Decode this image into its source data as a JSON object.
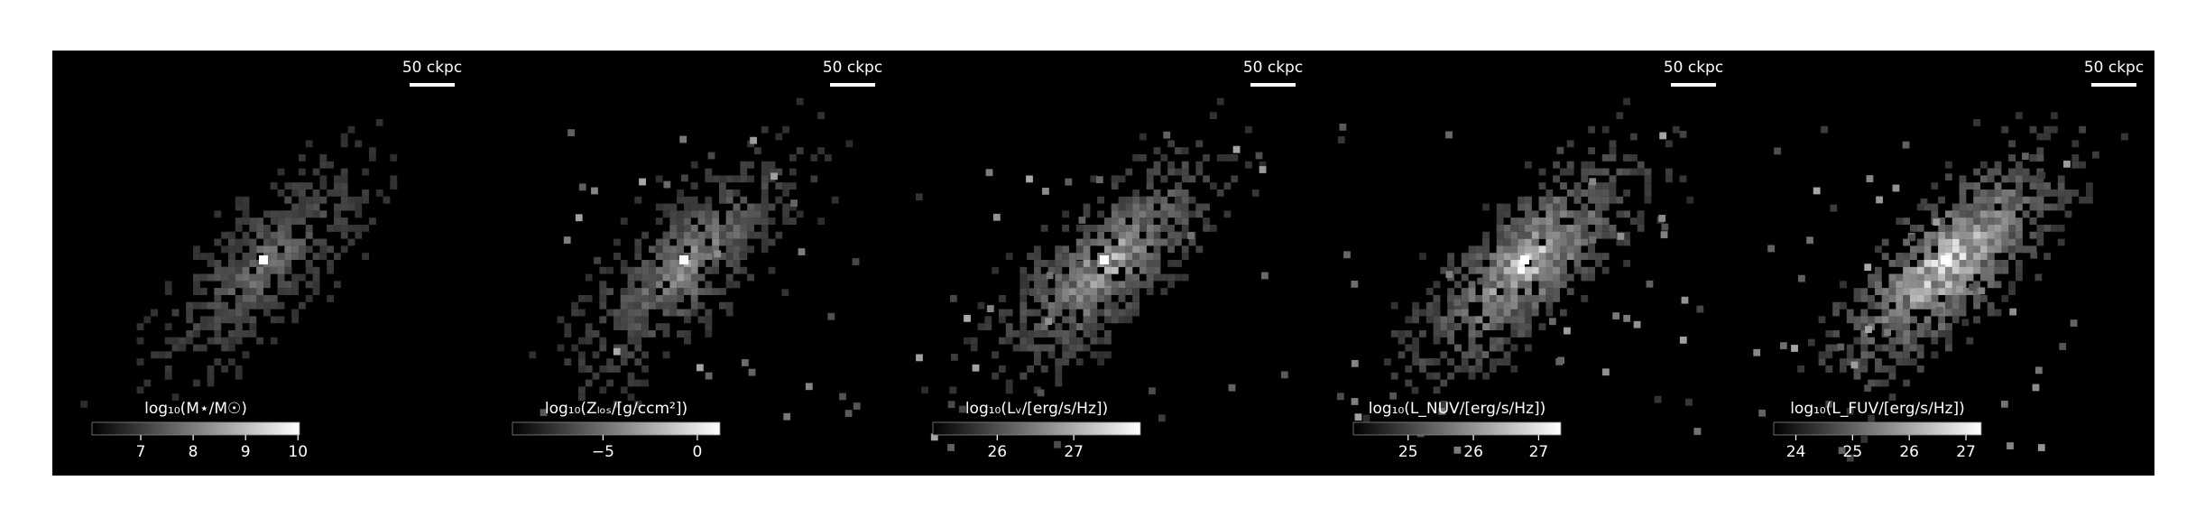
{
  "panels": [
    {
      "scale_label": "50 ckpc",
      "colorbar": {
        "label": "log₁₀(M⋆/M☉)",
        "range": [
          6.07,
          10.03
        ],
        "ticks": [
          7,
          8,
          9,
          10
        ]
      }
    },
    {
      "scale_label": "50 ckpc",
      "colorbar": {
        "label": "log₁₀(Zₗₒₛ/[g/ccm²])",
        "range": [
          -9.8,
          1.2
        ],
        "ticks": [
          {
            "value": -5,
            "label": "−5"
          },
          0
        ]
      }
    },
    {
      "scale_label": "50 ckpc",
      "colorbar": {
        "label": "log₁₀(Lᵥ/[erg/s/Hz])",
        "range": [
          25.16,
          27.87
        ],
        "ticks": [
          26,
          27
        ]
      }
    },
    {
      "scale_label": "50 ckpc",
      "colorbar": {
        "label": "log₁₀(L_NUV/[erg/s/Hz])",
        "range": [
          24.16,
          27.34
        ],
        "ticks": [
          25,
          26,
          27
        ]
      }
    },
    {
      "scale_label": "50 ckpc",
      "colorbar": {
        "label": "log₁₀(L_FUV/[erg/s/Hz])",
        "range": [
          23.61,
          27.27
        ],
        "ticks": [
          24,
          25,
          26,
          27
        ]
      }
    }
  ]
}
